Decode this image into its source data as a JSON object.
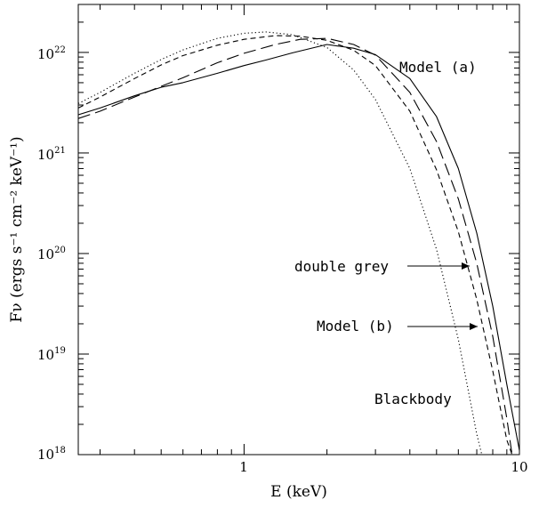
{
  "chart_data": {
    "type": "line",
    "xlabel": "E (keV)",
    "ylabel": "Fν (ergs s⁻¹ cm⁻² keV⁻¹)",
    "xscale": "log",
    "yscale": "log",
    "xlim": [
      0.25,
      10
    ],
    "ylim": [
      1e+18,
      3e+22
    ],
    "x_ticks": [
      {
        "value": 1,
        "label": "1"
      },
      {
        "value": 10,
        "label": "10"
      }
    ],
    "y_ticks": [
      {
        "value": 1e+18,
        "mantissa": "10",
        "exp": "18"
      },
      {
        "value": 1e+19,
        "mantissa": "10",
        "exp": "19"
      },
      {
        "value": 1e+20,
        "mantissa": "10",
        "exp": "20"
      },
      {
        "value": 1e+21,
        "mantissa": "10",
        "exp": "21"
      },
      {
        "value": 1e+22,
        "mantissa": "10",
        "exp": "22"
      }
    ],
    "grid": false,
    "series": [
      {
        "name": "Model (a)",
        "style": "solid",
        "points": [
          [
            0.25,
            2.4e+21
          ],
          [
            0.3,
            2.8e+21
          ],
          [
            0.4,
            3.7e+21
          ],
          [
            0.5,
            4.5e+21
          ],
          [
            0.6,
            5e+21
          ],
          [
            0.8,
            6.2e+21
          ],
          [
            1.0,
            7.4e+21
          ],
          [
            1.2,
            8.4e+21
          ],
          [
            1.5,
            9.9e+21
          ],
          [
            2.0,
            1.2e+22
          ],
          [
            2.5,
            1.1e+22
          ],
          [
            3.0,
            9.5e+21
          ],
          [
            4.0,
            5.5e+21
          ],
          [
            5.0,
            2.3e+21
          ],
          [
            6.0,
            7e+20
          ],
          [
            7.0,
            1.6e+20
          ],
          [
            8.0,
            3e+19
          ],
          [
            9.0,
            5e+18
          ],
          [
            10.0,
            1.1e+18
          ]
        ]
      },
      {
        "name": "double grey",
        "style": "dashed-short",
        "points": [
          [
            0.25,
            2.8e+21
          ],
          [
            0.3,
            3.6e+21
          ],
          [
            0.4,
            5.5e+21
          ],
          [
            0.5,
            7.5e+21
          ],
          [
            0.6,
            9.3e+21
          ],
          [
            0.8,
            1.18e+22
          ],
          [
            1.0,
            1.35e+22
          ],
          [
            1.3,
            1.47e+22
          ],
          [
            1.6,
            1.45e+22
          ],
          [
            2.0,
            1.32e+22
          ],
          [
            2.5,
            1.05e+22
          ],
          [
            3.0,
            7.4e+21
          ],
          [
            4.0,
            2.6e+21
          ],
          [
            5.0,
            6.8e+20
          ],
          [
            6.0,
            1.65e+20
          ],
          [
            7.0,
            3.5e+19
          ],
          [
            8.0,
            6.8e+18
          ],
          [
            9.0,
            1.4e+18
          ],
          [
            9.4,
            1e+18
          ]
        ]
      },
      {
        "name": "Model (b)",
        "style": "dashed-long",
        "points": [
          [
            0.25,
            2.2e+21
          ],
          [
            0.3,
            2.6e+21
          ],
          [
            0.4,
            3.6e+21
          ],
          [
            0.5,
            4.6e+21
          ],
          [
            0.6,
            5.6e+21
          ],
          [
            0.8,
            7.9e+21
          ],
          [
            1.0,
            9.8e+21
          ],
          [
            1.3,
            1.2e+22
          ],
          [
            1.6,
            1.35e+22
          ],
          [
            2.0,
            1.38e+22
          ],
          [
            2.5,
            1.2e+22
          ],
          [
            3.0,
            9.4e+21
          ],
          [
            4.0,
            4e+21
          ],
          [
            5.0,
            1.3e+21
          ],
          [
            6.0,
            3.5e+20
          ],
          [
            7.0,
            8e+19
          ],
          [
            8.0,
            1.5e+19
          ],
          [
            9.0,
            2.3e+18
          ],
          [
            9.4,
            1e+18
          ]
        ]
      },
      {
        "name": "Blackbody",
        "style": "dotted",
        "points": [
          [
            0.25,
            3.1e+21
          ],
          [
            0.3,
            4e+21
          ],
          [
            0.4,
            6.2e+21
          ],
          [
            0.5,
            8.5e+21
          ],
          [
            0.6,
            1.06e+22
          ],
          [
            0.8,
            1.38e+22
          ],
          [
            1.0,
            1.55e+22
          ],
          [
            1.2,
            1.6e+22
          ],
          [
            1.5,
            1.5e+22
          ],
          [
            2.0,
            1.12e+22
          ],
          [
            2.5,
            6.7e+21
          ],
          [
            3.0,
            3.4e+21
          ],
          [
            4.0,
            7e+20
          ],
          [
            5.0,
            1.1e+20
          ],
          [
            6.0,
            1.4e+19
          ],
          [
            7.0,
            1.6e+18
          ],
          [
            7.3,
            1e+18
          ]
        ]
      }
    ],
    "annotations": [
      {
        "text": "Model (a)"
      },
      {
        "text": "double grey"
      },
      {
        "text": "Model (b)"
      },
      {
        "text": "Blackbody"
      }
    ]
  }
}
